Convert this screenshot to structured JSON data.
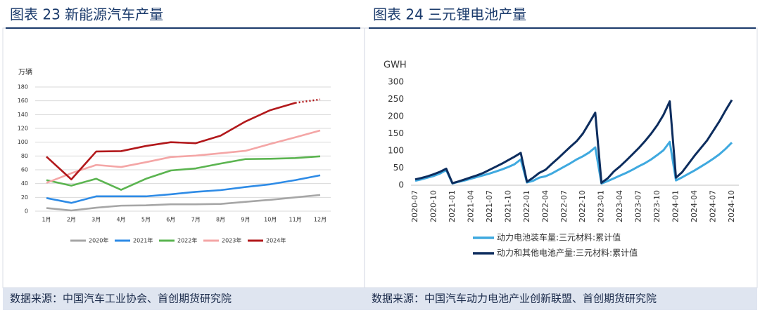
{
  "sources": [
    "数据来源：中国汽车工业协会、首创期货研究院",
    "数据来源：中国汽车动力电池产业创新联盟、首创期货研究院"
  ],
  "chart_data": [
    {
      "type": "line",
      "title": "图表 23 新能源汽车产量",
      "ylabel": "万辆",
      "categories": [
        "1月",
        "2月",
        "3月",
        "4月",
        "5月",
        "6月",
        "7月",
        "8月",
        "9月",
        "10月",
        "11月",
        "12月"
      ],
      "ylim": [
        0,
        180
      ],
      "yticks": [
        0,
        20,
        40,
        60,
        80,
        100,
        120,
        140,
        160,
        180
      ],
      "grid": true,
      "series": [
        {
          "name": "2020年",
          "color": "#a6a6a6",
          "values": [
            4.5,
            1,
            5,
            8,
            8.5,
            10,
            10,
            10.5,
            13.5,
            16.5,
            20,
            23.5
          ]
        },
        {
          "name": "2021年",
          "color": "#2e8be6",
          "values": [
            19,
            12,
            21.5,
            21.5,
            21.5,
            24.5,
            28,
            30.5,
            35,
            39,
            45,
            52
          ]
        },
        {
          "name": "2022年",
          "color": "#5bb450",
          "values": [
            45,
            37,
            47,
            31,
            47,
            59,
            62,
            69,
            75.5,
            76,
            77,
            79.5
          ]
        },
        {
          "name": "2023年",
          "color": "#f4a6a6",
          "values": [
            41,
            55,
            67,
            64,
            71,
            78.5,
            80.5,
            84,
            87.5,
            97.5,
            107,
            117
          ]
        },
        {
          "name": "2024年",
          "color": "#b2181b",
          "values": [
            79,
            46,
            86.5,
            87,
            94.5,
            100,
            98.5,
            109.5,
            130,
            146.5,
            157,
            162
          ]
        }
      ]
    },
    {
      "type": "line",
      "title": "图表 24 三元锂电池产量",
      "ylabel": "GWH",
      "categories": [
        "2020-07",
        null,
        null,
        "2020-10",
        null,
        null,
        "2021-01",
        null,
        null,
        "2021-04",
        null,
        null,
        "2021-07",
        null,
        null,
        "2021-10",
        null,
        null,
        "2022-01",
        null,
        null,
        "2022-04",
        null,
        null,
        "2022-07",
        null,
        null,
        "2022-10",
        null,
        null,
        "2023-01",
        null,
        null,
        "2023-04",
        null,
        null,
        "2023-07",
        null,
        null,
        "2023-10",
        null,
        null,
        "2024-01",
        null,
        null,
        "2024-04",
        null,
        null,
        "2024-07",
        null,
        null,
        "2024-10"
      ],
      "ylim": [
        0,
        300
      ],
      "yticks": [
        0,
        50,
        100,
        150,
        200,
        250,
        300
      ],
      "grid": false,
      "series": [
        {
          "name": "动力电池装车量:三元材料:累计值",
          "color": "#3fa9df",
          "values": [
            13,
            17,
            22,
            27,
            34,
            44,
            5,
            10,
            14,
            19,
            24,
            29,
            34,
            40,
            46,
            53,
            61,
            75,
            8,
            13,
            22,
            26,
            34,
            44,
            54,
            64,
            75,
            84,
            95,
            110,
            5,
            12,
            20,
            28,
            36,
            45,
            55,
            64,
            75,
            88,
            102,
            126,
            14,
            23,
            33,
            43,
            54,
            65,
            77,
            90,
            106,
            124
          ]
        },
        {
          "name": "动力和其他电池产量:三元材料:累计值",
          "color": "#0d2d5e",
          "values": [
            17,
            21,
            26,
            32,
            39,
            48,
            6,
            11,
            17,
            23,
            29,
            36,
            45,
            54,
            63,
            73,
            83,
            94,
            10,
            22,
            36,
            45,
            62,
            78,
            95,
            112,
            128,
            150,
            180,
            211,
            7,
            20,
            40,
            55,
            72,
            90,
            108,
            128,
            150,
            175,
            205,
            244,
            22,
            38,
            62,
            86,
            108,
            130,
            158,
            186,
            218,
            248
          ]
        }
      ]
    }
  ]
}
